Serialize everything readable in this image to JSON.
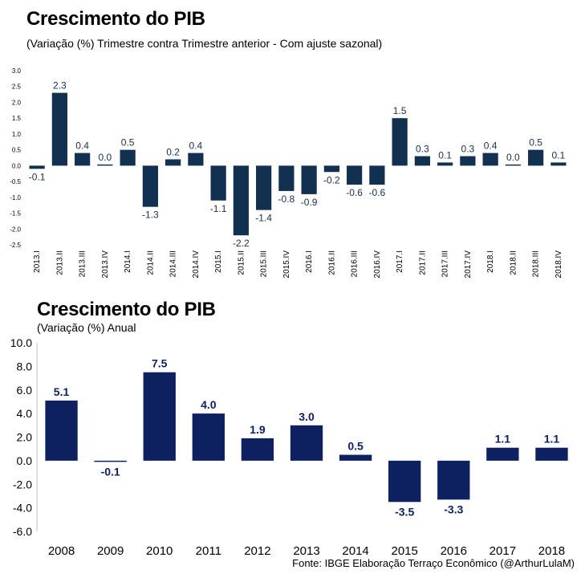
{
  "chart_data": [
    {
      "type": "bar",
      "title": "Crescimento do PIB",
      "subtitle": "(Variação (%) Trimestre contra Trimestre anterior - Com ajuste sazonal)",
      "categories": [
        "2013.I",
        "2013.II",
        "2013.III",
        "2013.IV",
        "2014.I",
        "2014.II",
        "2014.III",
        "2014.IV",
        "2015.I",
        "2015.II",
        "2015.III",
        "2015.IV",
        "2016.I",
        "2016.II",
        "2016.III",
        "2016.IV",
        "2017.I",
        "2017.II",
        "2017.III",
        "2017.IV",
        "2018.I",
        "2018.II",
        "2018.III",
        "2018.IV"
      ],
      "values": [
        -0.1,
        2.3,
        0.4,
        0.0,
        0.5,
        -1.3,
        0.2,
        0.4,
        -1.1,
        -2.2,
        -1.4,
        -0.8,
        -0.9,
        -0.2,
        -0.6,
        -0.6,
        1.5,
        0.3,
        0.1,
        0.3,
        0.4,
        0.0,
        0.5,
        0.1
      ],
      "labels": [
        "-0.1",
        "2.3",
        "0.4",
        "0.0",
        "0.5",
        "-1.3",
        "0.2",
        "0.4",
        "-1.1",
        "-2.2",
        "-1.4",
        "-0.8",
        "-0.9",
        "-0.2",
        "-0.6",
        "-0.6",
        "1.5",
        "0.3",
        "0.1",
        "0.3",
        "0.4",
        "0.0",
        "0.5",
        "0.1"
      ],
      "ylim": [
        -2.5,
        3.0
      ],
      "yticks": [
        "3.0",
        "2.5",
        "2.0",
        "1.5",
        "1.0",
        "0.5",
        "0.0",
        "-0.5",
        "-1.0",
        "-1.5",
        "-2.0",
        "-2.5"
      ],
      "color": "#12304f",
      "grid": false
    },
    {
      "type": "bar",
      "title": "Crescimento do PIB",
      "subtitle": "(Variação (%) Anual",
      "categories": [
        "2008",
        "2009",
        "2010",
        "2011",
        "2012",
        "2013",
        "2014",
        "2015",
        "2016",
        "2017",
        "2018"
      ],
      "values": [
        5.1,
        -0.1,
        7.5,
        4.0,
        1.9,
        3.0,
        0.5,
        -3.5,
        -3.3,
        1.1,
        1.1
      ],
      "labels": [
        "5.1",
        "-0.1",
        "7.5",
        "4.0",
        "1.9",
        "3.0",
        "0.5",
        "-3.5",
        "-3.3",
        "1.1",
        "1.1"
      ],
      "ylim": [
        -6.0,
        10.0
      ],
      "yticks": [
        "10.0",
        "8.0",
        "6.0",
        "4.0",
        "2.0",
        "0.0",
        "-2.0",
        "-4.0",
        "-6.0"
      ],
      "color": "#0d2160",
      "label_color": "#0d2160",
      "grid": false
    }
  ],
  "source": "Fonte: IBGE   Elaboração Terraço Econômico (@ArthurLulaM)"
}
